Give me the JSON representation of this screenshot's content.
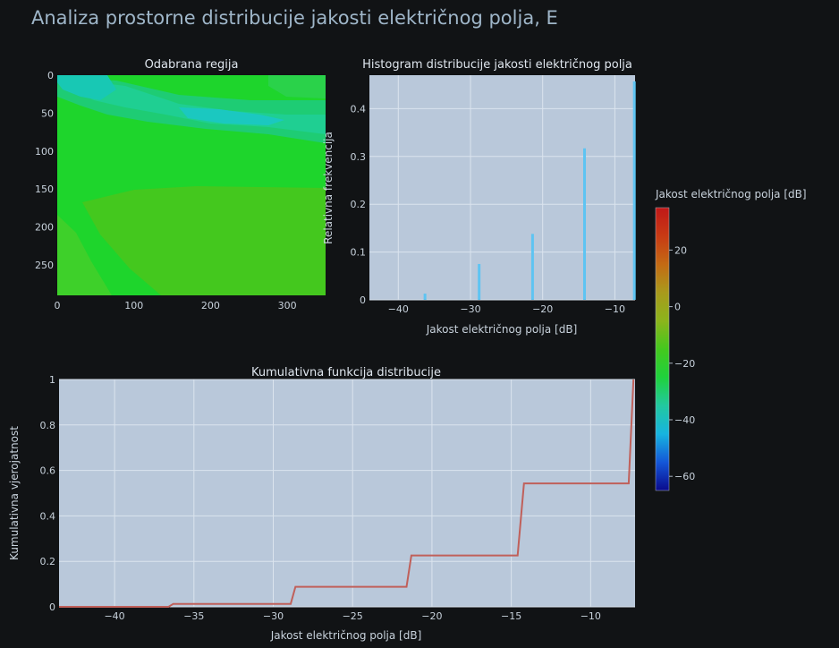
{
  "page_title": "Analiza prostorne distribucije jakosti električnog polja, E",
  "colors": {
    "background": "#111315",
    "plot_bg": "#b9c8da",
    "grid": "#dbe4ee",
    "hist_bar": "#5ec4f2",
    "cdf_line": "#c0605a",
    "title_text": "#9fb6c9",
    "tick_text": "#c8d2dc"
  },
  "colorbar": {
    "title": "Jakost električnog polja [dB]",
    "range": [
      -65,
      35
    ],
    "ticks": [
      20,
      0,
      -20,
      -40,
      -60
    ],
    "tick_labels": [
      "20",
      "0",
      "−20",
      "−40",
      "−60"
    ],
    "colors": [
      "#0a0a8c",
      "#1457d8",
      "#17b4e0",
      "#22c8a0",
      "#1fd23c",
      "#44c81e",
      "#8cb41c",
      "#a99a1c",
      "#c46a14",
      "#c83a14",
      "#c01818"
    ]
  },
  "chart_data": [
    {
      "id": "heatmap",
      "type": "heatmap",
      "title": "Odabrana regija",
      "xlim": [
        0,
        350
      ],
      "ylim": [
        290,
        0
      ],
      "x_ticks": [
        0,
        100,
        200,
        300
      ],
      "x_tick_labels": [
        "0",
        "100",
        "200",
        "300"
      ],
      "y_ticks": [
        0,
        50,
        100,
        150,
        200,
        250
      ],
      "y_tick_labels": [
        "0",
        "50",
        "100",
        "150",
        "200",
        "250"
      ],
      "dominant_values_db": [
        -8,
        -14,
        -21,
        -29,
        -36
      ]
    },
    {
      "id": "histogram",
      "type": "bar",
      "title": "Histogram distribucije jakosti električnog polja",
      "xlabel": "Jakost električnog polja [dB]",
      "ylabel": "Relativna frekvencija",
      "xlim": [
        -44,
        -7.2
      ],
      "ylim": [
        0,
        0.47
      ],
      "x_ticks": [
        -40,
        -30,
        -20,
        -10
      ],
      "x_tick_labels": [
        "−40",
        "−30",
        "−20",
        "−10"
      ],
      "y_ticks": [
        0,
        0.1,
        0.2,
        0.3,
        0.4
      ],
      "y_tick_labels": [
        "0",
        "0.1",
        "0.2",
        "0.3",
        "0.4"
      ],
      "x": [
        -36.3,
        -28.8,
        -21.4,
        -14.2,
        -7.3
      ],
      "values": [
        0.013,
        0.075,
        0.138,
        0.317,
        0.457
      ]
    },
    {
      "id": "cdf",
      "type": "line",
      "title": "Kumulativna funkcija distribucije",
      "xlabel": "Jakost električnog polja [dB]",
      "ylabel": "Kumulativna vjerojatnost",
      "xlim": [
        -43.5,
        -7.2
      ],
      "ylim": [
        0,
        1
      ],
      "x_ticks": [
        -40,
        -35,
        -30,
        -25,
        -20,
        -15,
        -10
      ],
      "x_tick_labels": [
        "−40",
        "−35",
        "−30",
        "−25",
        "−20",
        "−15",
        "−10"
      ],
      "y_ticks": [
        0,
        0.2,
        0.4,
        0.6,
        0.8,
        1
      ],
      "y_tick_labels": [
        "0",
        "0.2",
        "0.4",
        "0.6",
        "0.8",
        "1"
      ],
      "x": [
        -43.5,
        -36.6,
        -36.3,
        -28.9,
        -28.6,
        -21.6,
        -21.3,
        -14.6,
        -14.2,
        -7.6,
        -7.3
      ],
      "y": [
        0,
        0,
        0.013,
        0.013,
        0.088,
        0.088,
        0.226,
        0.226,
        0.543,
        0.543,
        1.0
      ]
    }
  ]
}
